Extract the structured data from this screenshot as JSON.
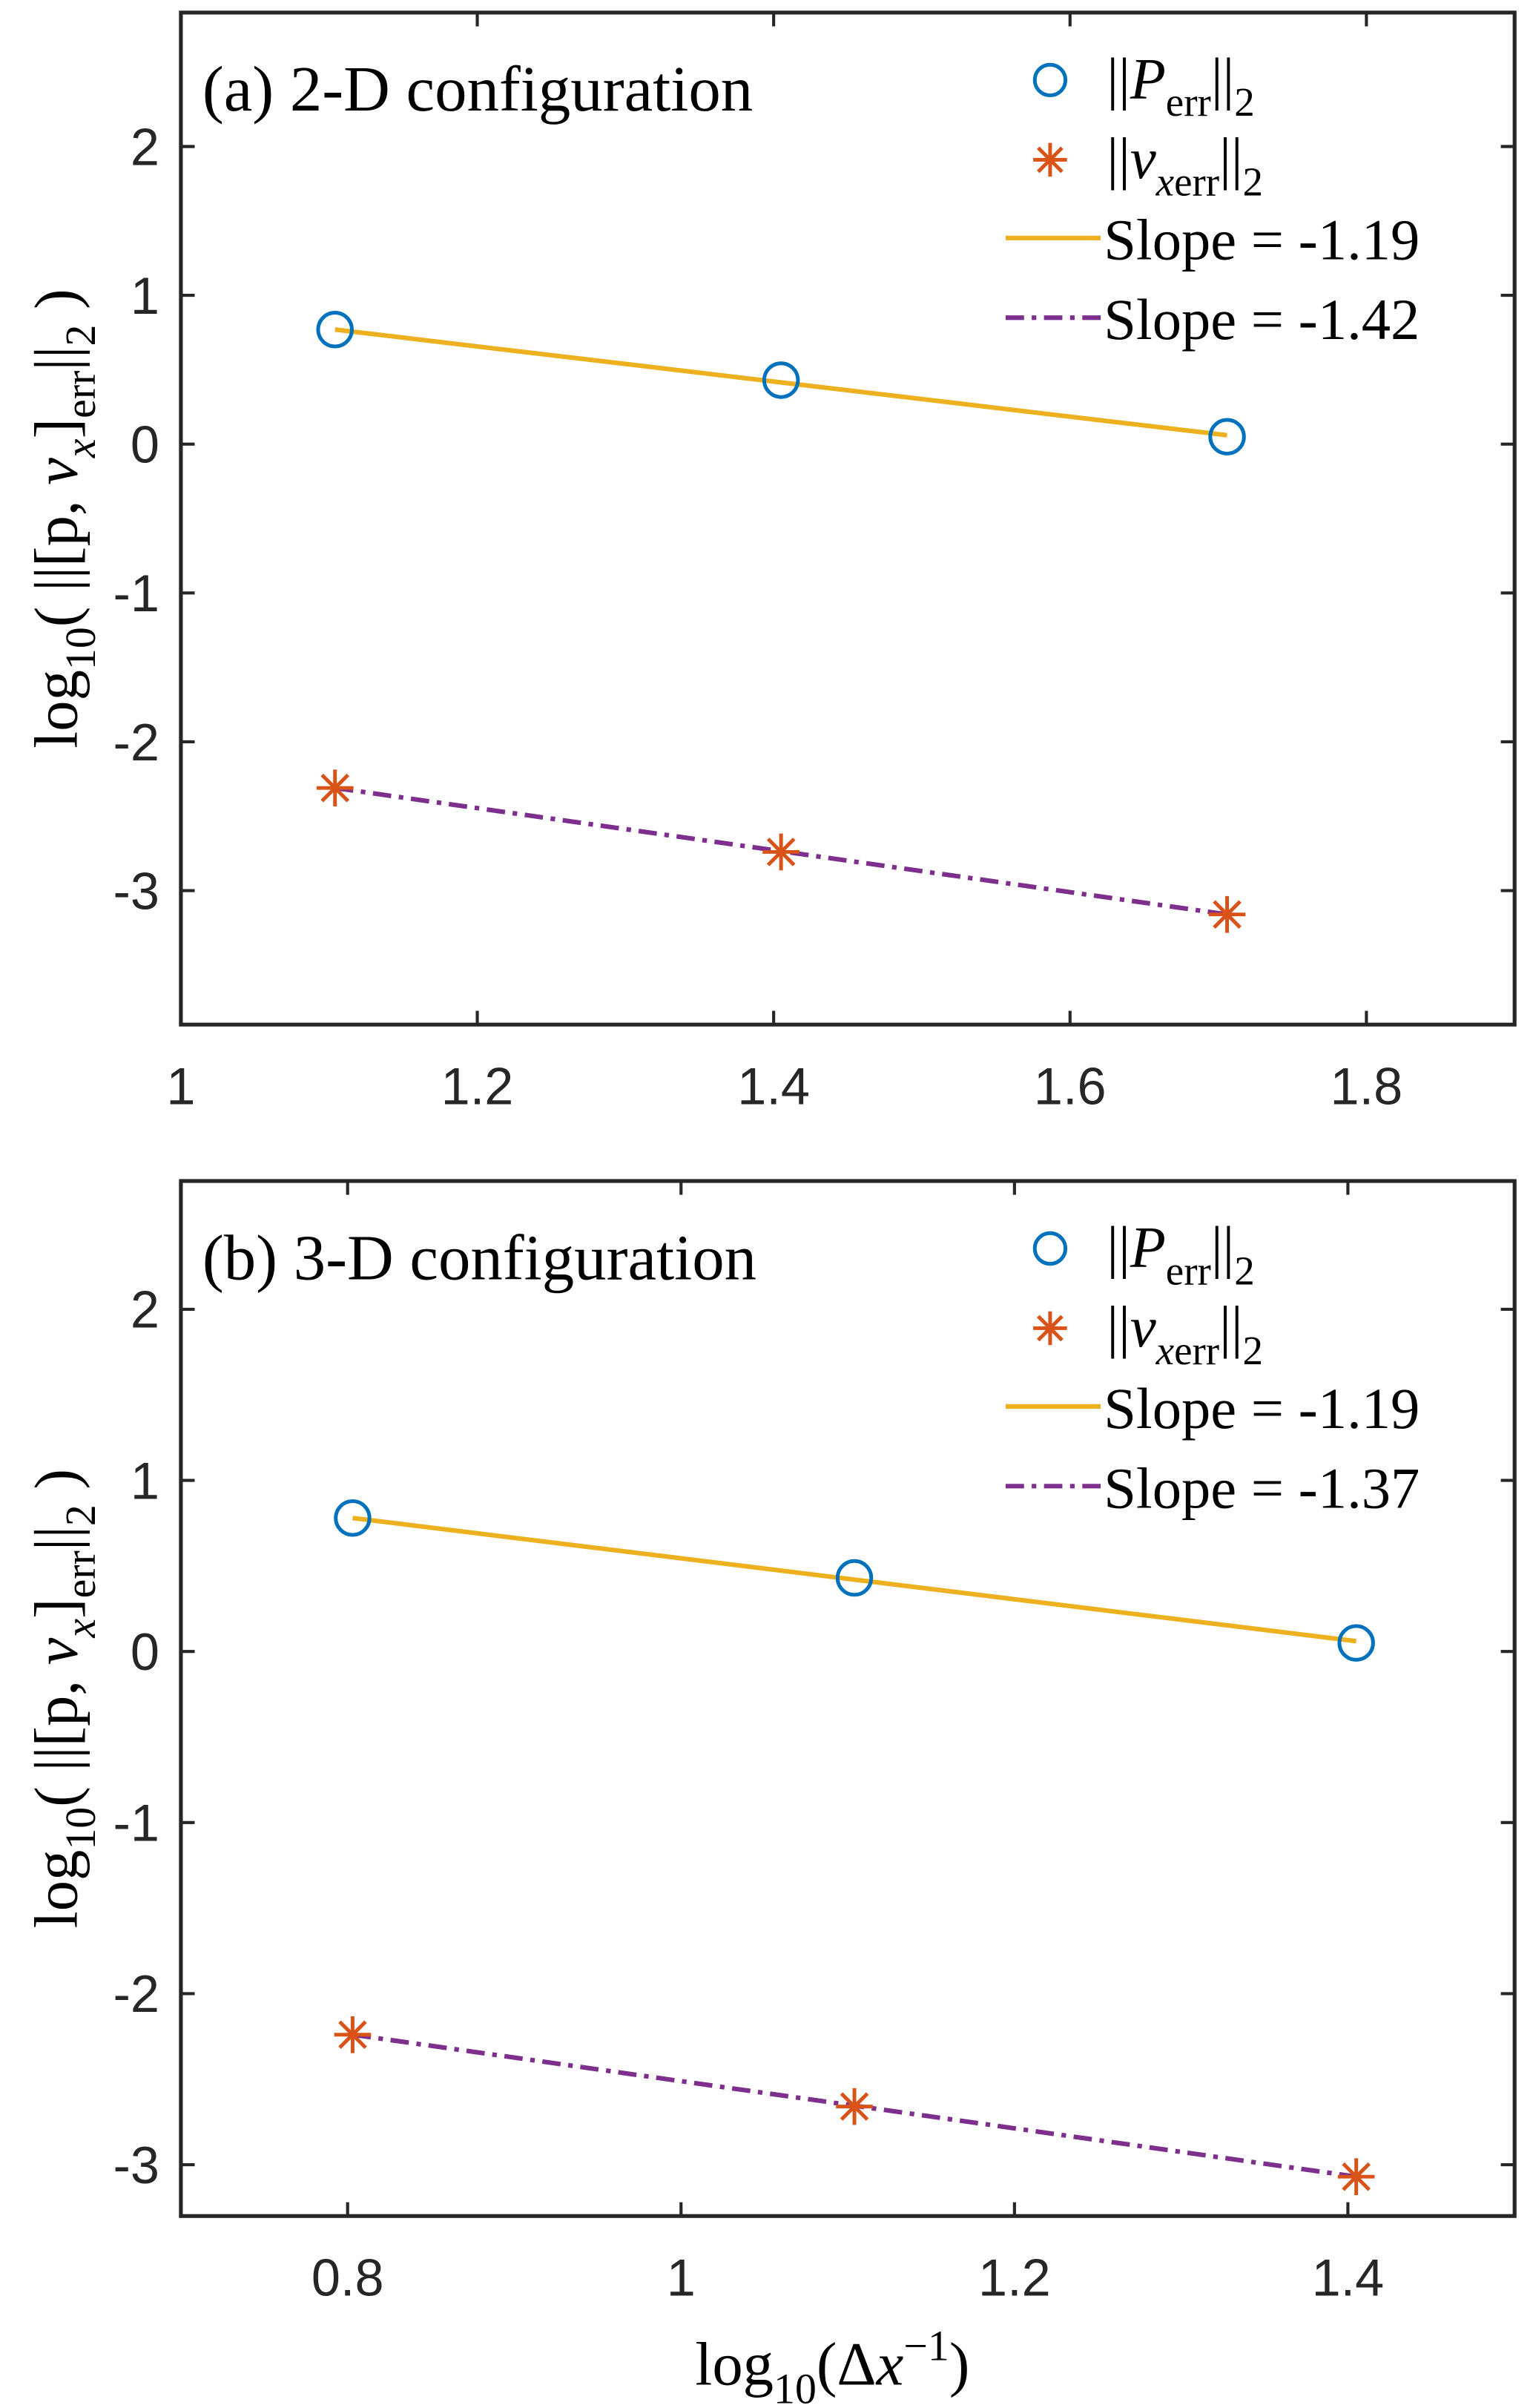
{
  "colors": {
    "circle": "#0072BD",
    "star": "#D95319",
    "fit_solid": "#EDB120",
    "fit_dashdot": "#7E2F8E",
    "axes": "#262626"
  },
  "chart_data": [
    {
      "type": "line",
      "title": "(a) 2-D configuration",
      "xlabel": [],
      "ylabel": [
        {
          "t": "log"
        },
        {
          "t": "10",
          "sub": true
        },
        {
          "t": "( ||[p, "
        },
        {
          "t": "v",
          "i": true
        },
        {
          "t": "x",
          "sub": true,
          "i": true
        },
        {
          "t": "]"
        },
        {
          "t": "err",
          "sub": true
        },
        {
          "t": "||"
        },
        {
          "t": "2",
          "sub": true
        },
        {
          "t": " )"
        }
      ],
      "xlim": [
        1,
        1.9
      ],
      "ylim": [
        -3.9,
        2.9
      ],
      "xticks": [
        "1",
        "1.2",
        "1.4",
        "1.6",
        "1.8"
      ],
      "xtick_values": [
        1,
        1.2,
        1.4,
        1.6,
        1.8
      ],
      "yticks": [
        "-3",
        "-2",
        "-1",
        "0",
        "1",
        "2"
      ],
      "ytick_values": [
        -3,
        -2,
        -1,
        0,
        1,
        2
      ],
      "grid": false,
      "legend_position": "top-right",
      "series": [
        {
          "name": [
            {
              "t": "||"
            },
            {
              "t": "P",
              "i": true
            },
            {
              "t": "err",
              "sub": true
            },
            {
              "t": "||"
            },
            {
              "t": "2",
              "sub": true
            }
          ],
          "style": "circle",
          "x": [
            1.104,
            1.405,
            1.706
          ],
          "y": [
            0.77,
            0.43,
            0.05
          ]
        },
        {
          "name": [
            {
              "t": "||"
            },
            {
              "t": "v",
              "i": true
            },
            {
              "t": "x",
              "sub": true,
              "i": true
            },
            {
              "t": "err",
              "sub": true
            },
            {
              "t": "||"
            },
            {
              "t": "2",
              "sub": true
            }
          ],
          "style": "star",
          "x": [
            1.104,
            1.405,
            1.706
          ],
          "y": [
            -2.31,
            -2.74,
            -3.16
          ]
        },
        {
          "name": [
            {
              "t": "Slope = -1.19"
            }
          ],
          "style": "solid",
          "x": [
            1.104,
            1.706
          ],
          "y": [
            0.77,
            0.06
          ]
        },
        {
          "name": [
            {
              "t": "Slope = -1.42"
            }
          ],
          "style": "dashdot",
          "x": [
            1.104,
            1.706
          ],
          "y": [
            -2.31,
            -3.16
          ]
        }
      ]
    },
    {
      "type": "line",
      "title": "(b) 3-D configuration",
      "xlabel": [
        {
          "t": "log"
        },
        {
          "t": "10",
          "sub": true
        },
        {
          "t": "(Δ"
        },
        {
          "t": "x",
          "i": true
        },
        {
          "t": "−1",
          "sup": true
        },
        {
          "t": ")"
        }
      ],
      "ylabel": [
        {
          "t": "log"
        },
        {
          "t": "10",
          "sub": true
        },
        {
          "t": "( ||[p, "
        },
        {
          "t": "v",
          "i": true
        },
        {
          "t": "x",
          "sub": true,
          "i": true
        },
        {
          "t": "]"
        },
        {
          "t": "err",
          "sub": true
        },
        {
          "t": "||"
        },
        {
          "t": "2",
          "sub": true
        },
        {
          "t": " )"
        }
      ],
      "xlim": [
        0.7,
        1.5
      ],
      "ylim": [
        -3.3,
        2.75
      ],
      "xticks": [
        "0.8",
        "1",
        "1.2",
        "1.4"
      ],
      "xtick_values": [
        0.8,
        1,
        1.2,
        1.4
      ],
      "yticks": [
        "-3",
        "-2",
        "-1",
        "0",
        "1",
        "2"
      ],
      "ytick_values": [
        -3,
        -2,
        -1,
        0,
        1,
        2
      ],
      "grid": false,
      "legend_position": "top-right",
      "series": [
        {
          "name": [
            {
              "t": "||"
            },
            {
              "t": "P",
              "i": true
            },
            {
              "t": "err",
              "sub": true
            },
            {
              "t": "||"
            },
            {
              "t": "2",
              "sub": true
            }
          ],
          "style": "circle",
          "x": [
            0.803,
            1.104,
            1.405
          ],
          "y": [
            0.78,
            0.43,
            0.05
          ]
        },
        {
          "name": [
            {
              "t": "||"
            },
            {
              "t": "v",
              "i": true
            },
            {
              "t": "x",
              "sub": true,
              "i": true
            },
            {
              "t": "err",
              "sub": true
            },
            {
              "t": "||"
            },
            {
              "t": "2",
              "sub": true
            }
          ],
          "style": "star",
          "x": [
            0.803,
            1.104,
            1.405
          ],
          "y": [
            -2.24,
            -2.66,
            -3.07
          ]
        },
        {
          "name": [
            {
              "t": "Slope = -1.19"
            }
          ],
          "style": "solid",
          "x": [
            0.803,
            1.405
          ],
          "y": [
            0.78,
            0.06
          ]
        },
        {
          "name": [
            {
              "t": "Slope = -1.37"
            }
          ],
          "style": "dashdot",
          "x": [
            0.803,
            1.405
          ],
          "y": [
            -2.24,
            -3.07
          ]
        }
      ]
    }
  ]
}
